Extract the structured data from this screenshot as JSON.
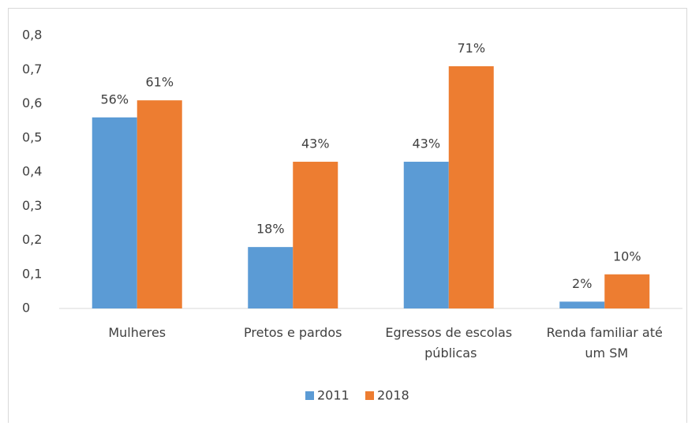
{
  "chart_data": {
    "type": "bar",
    "categories": [
      "Mulheres",
      "Pretos e pardos",
      "Egressos de escolas públicas",
      "Renda familiar até um SM"
    ],
    "series": [
      {
        "name": "2011",
        "color": "#5b9bd5",
        "values": [
          0.56,
          0.18,
          0.43,
          0.02
        ],
        "value_labels": [
          "56%",
          "18%",
          "43%",
          "2%"
        ]
      },
      {
        "name": "2018",
        "color": "#ed7d31",
        "values": [
          0.61,
          0.43,
          0.71,
          0.1
        ],
        "value_labels": [
          "61%",
          "43%",
          "71%",
          "10%"
        ]
      }
    ],
    "ylim": [
      0,
      0.8
    ],
    "yticks": [
      0,
      {
        "value": 0.1,
        "label": "0,1"
      },
      {
        "value": 0.2,
        "label": "0,2"
      },
      {
        "value": 0.3,
        "label": "0,3"
      },
      {
        "value": 0.4,
        "label": "0,4"
      },
      {
        "value": 0.5,
        "label": "0,5"
      },
      {
        "value": 0.6,
        "label": "0,6"
      },
      {
        "value": 0.7,
        "label": "0,7"
      },
      {
        "value": 0.8,
        "label": "0,8"
      }
    ],
    "grid": false,
    "legend": "bottom"
  }
}
